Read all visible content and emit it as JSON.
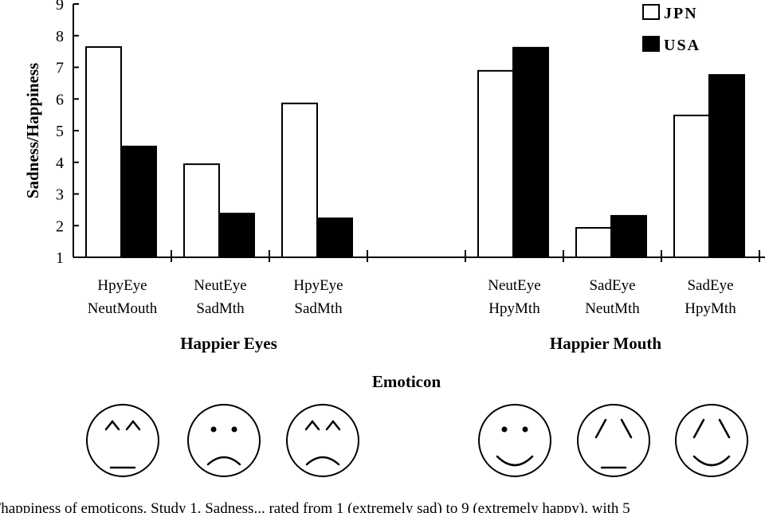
{
  "chart_data": {
    "type": "bar",
    "ylabel": "Sadness/Happiness",
    "ylim": [
      1,
      9
    ],
    "yticks": [
      "1",
      "2",
      "3",
      "4",
      "5",
      "6",
      "7",
      "8",
      "9"
    ],
    "grid": false,
    "legend_position": "top-right",
    "categories": [
      {
        "line1": "HpyEye",
        "line2": "NeutMouth"
      },
      {
        "line1": "NeutEye",
        "line2": "SadMth"
      },
      {
        "line1": "HpyEye",
        "line2": "SadMth"
      },
      {
        "line1": "",
        "line2": ""
      },
      {
        "line1": "NeutEye",
        "line2": "HpyMth"
      },
      {
        "line1": "SadEye",
        "line2": "NeutMth"
      },
      {
        "line1": "SadEye",
        "line2": "HpyMth"
      }
    ],
    "series": [
      {
        "name": "JPN",
        "color": "#ffffff",
        "values": [
          7.64,
          3.94,
          5.86,
          null,
          6.89,
          1.93,
          5.48
        ]
      },
      {
        "name": "USA",
        "color": "#000000",
        "values": [
          4.5,
          2.38,
          2.23,
          null,
          7.62,
          2.31,
          6.76
        ]
      }
    ],
    "group_labels": [
      "Happier Eyes",
      "Happier Mouth"
    ],
    "section_title": "Emoticon",
    "emoticons": [
      "happy-eyes-neutral-mouth",
      "neutral-eyes-sad-mouth",
      "happy-eyes-sad-mouth",
      "neutral-eyes-happy-mouth",
      "sad-eyes-neutral-mouth",
      "sad-eyes-happy-mouth"
    ]
  },
  "caption": "/happiness of emoticons. Study 1. Sadness... rated from 1 (extremely sad) to 9 (extremely happy), with 5"
}
